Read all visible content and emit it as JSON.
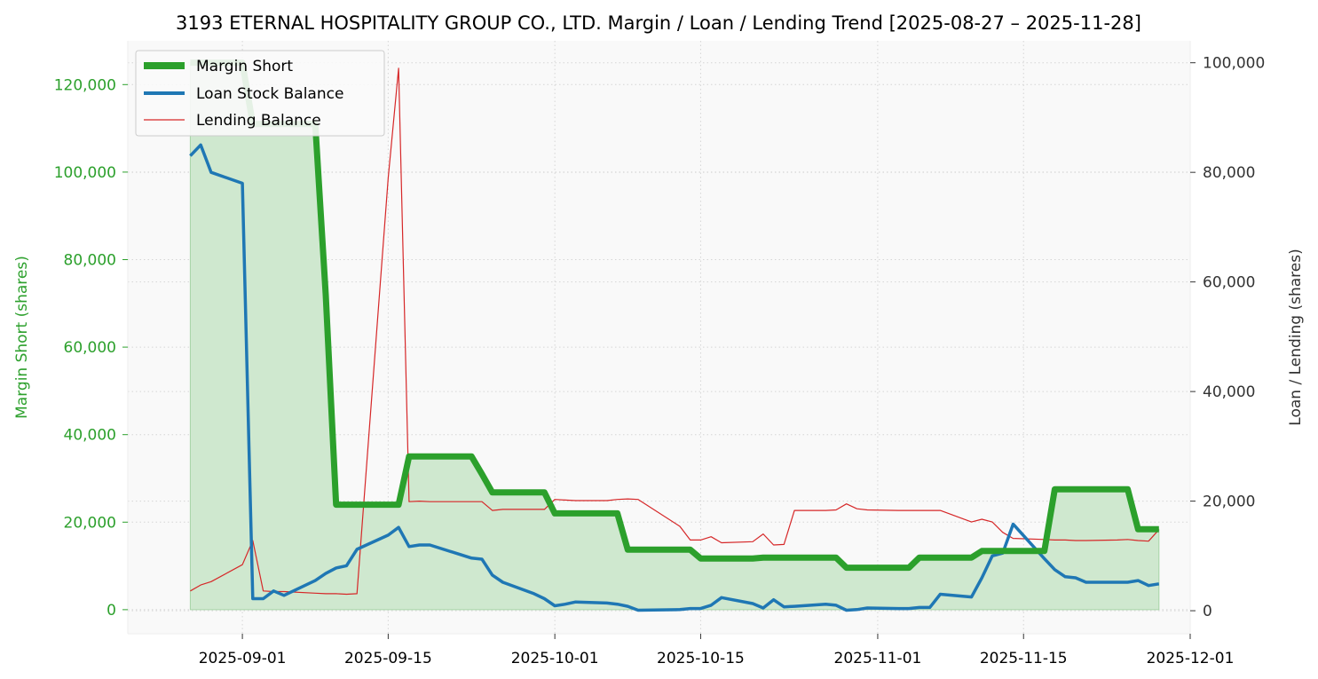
{
  "chart_data": {
    "type": "line",
    "title": "3193 ETERNAL HOSPITALITY GROUP CO., LTD. Margin / Loan / Lending Trend [2025-08-27 – 2025-11-28]",
    "xlabel": "",
    "ylabel_left": "Margin Short (shares)",
    "ylabel_right": "Loan / Lending (shares)",
    "x_range": [
      "2025-08-21",
      "2025-12-01"
    ],
    "ylim_left": [
      -5500,
      130000
    ],
    "ylim_right": [
      -4200,
      104000
    ],
    "x_ticks": [
      {
        "date": "2025-09-01",
        "label": "2025-09-01"
      },
      {
        "date": "2025-09-15",
        "label": "2025-09-15"
      },
      {
        "date": "2025-10-01",
        "label": "2025-10-01"
      },
      {
        "date": "2025-10-15",
        "label": "2025-10-15"
      },
      {
        "date": "2025-11-01",
        "label": "2025-11-01"
      },
      {
        "date": "2025-11-15",
        "label": "2025-11-15"
      },
      {
        "date": "2025-12-01",
        "label": "2025-12-01"
      }
    ],
    "y_left_ticks": [
      {
        "value": 0,
        "label": "0"
      },
      {
        "value": 20000,
        "label": "20,000"
      },
      {
        "value": 40000,
        "label": "40,000"
      },
      {
        "value": 60000,
        "label": "60,000"
      },
      {
        "value": 80000,
        "label": "80,000"
      },
      {
        "value": 100000,
        "label": "100,000"
      },
      {
        "value": 120000,
        "label": "120,000"
      }
    ],
    "y_right_ticks": [
      {
        "value": 0,
        "label": "0"
      },
      {
        "value": 20000,
        "label": "20,000"
      },
      {
        "value": 40000,
        "label": "40,000"
      },
      {
        "value": 60000,
        "label": "60,000"
      },
      {
        "value": 80000,
        "label": "80,000"
      },
      {
        "value": 100000,
        "label": "100,000"
      }
    ],
    "legend_position": "top-left",
    "grid": true,
    "colors": {
      "margin": "#2ca02c",
      "margin_fill": "#cfe8cf",
      "loan": "#1f77b4",
      "lending": "#d62728",
      "left_axis": "#2ca02c",
      "right_axis": "#333333",
      "plot_bg": "#f9f9f9",
      "grid": "#d5d5d5"
    },
    "series": [
      {
        "name": "Margin Short",
        "axis": "left",
        "points": [
          [
            "2025-08-27",
            125000
          ],
          [
            "2025-08-28",
            125000
          ],
          [
            "2025-08-29",
            125000
          ],
          [
            "2025-09-01",
            125000
          ],
          [
            "2025-09-02",
            111000
          ],
          [
            "2025-09-03",
            111000
          ],
          [
            "2025-09-04",
            111000
          ],
          [
            "2025-09-05",
            111000
          ],
          [
            "2025-09-08",
            111000
          ],
          [
            "2025-09-09",
            72000
          ],
          [
            "2025-09-10",
            24000
          ],
          [
            "2025-09-11",
            24000
          ],
          [
            "2025-09-12",
            24000
          ],
          [
            "2025-09-15",
            24000
          ],
          [
            "2025-09-16",
            24000
          ],
          [
            "2025-09-17",
            35000
          ],
          [
            "2025-09-18",
            35000
          ],
          [
            "2025-09-19",
            35000
          ],
          [
            "2025-09-22",
            35000
          ],
          [
            "2025-09-23",
            35000
          ],
          [
            "2025-09-24",
            31000
          ],
          [
            "2025-09-25",
            26800
          ],
          [
            "2025-09-26",
            26800
          ],
          [
            "2025-09-29",
            26800
          ],
          [
            "2025-09-30",
            26800
          ],
          [
            "2025-10-01",
            22000
          ],
          [
            "2025-10-02",
            22000
          ],
          [
            "2025-10-03",
            22000
          ],
          [
            "2025-10-06",
            22000
          ],
          [
            "2025-10-07",
            22000
          ],
          [
            "2025-10-08",
            13700
          ],
          [
            "2025-10-09",
            13700
          ],
          [
            "2025-10-13",
            13700
          ],
          [
            "2025-10-14",
            13700
          ],
          [
            "2025-10-15",
            11700
          ],
          [
            "2025-10-16",
            11700
          ],
          [
            "2025-10-17",
            11700
          ],
          [
            "2025-10-20",
            11700
          ],
          [
            "2025-10-21",
            11900
          ],
          [
            "2025-10-22",
            11900
          ],
          [
            "2025-10-23",
            11900
          ],
          [
            "2025-10-24",
            11900
          ],
          [
            "2025-10-27",
            11900
          ],
          [
            "2025-10-28",
            11900
          ],
          [
            "2025-10-29",
            9600
          ],
          [
            "2025-10-30",
            9600
          ],
          [
            "2025-10-31",
            9600
          ],
          [
            "2025-11-03",
            9600
          ],
          [
            "2025-11-04",
            9600
          ],
          [
            "2025-11-05",
            11900
          ],
          [
            "2025-11-06",
            11900
          ],
          [
            "2025-11-07",
            11900
          ],
          [
            "2025-11-10",
            11900
          ],
          [
            "2025-11-11",
            13400
          ],
          [
            "2025-11-12",
            13400
          ],
          [
            "2025-11-13",
            13400
          ],
          [
            "2025-11-14",
            13400
          ],
          [
            "2025-11-17",
            13400
          ],
          [
            "2025-11-18",
            27500
          ],
          [
            "2025-11-19",
            27500
          ],
          [
            "2025-11-20",
            27500
          ],
          [
            "2025-11-21",
            27500
          ],
          [
            "2025-11-24",
            27500
          ],
          [
            "2025-11-25",
            27500
          ],
          [
            "2025-11-26",
            18400
          ],
          [
            "2025-11-27",
            18400
          ],
          [
            "2025-11-28",
            18400
          ]
        ]
      },
      {
        "name": "Loan Stock Balance",
        "axis": "right",
        "points": [
          [
            "2025-08-27",
            83000
          ],
          [
            "2025-08-28",
            85000
          ],
          [
            "2025-08-29",
            80000
          ],
          [
            "2025-09-01",
            78000
          ],
          [
            "2025-09-02",
            2200
          ],
          [
            "2025-09-03",
            2200
          ],
          [
            "2025-09-04",
            3600
          ],
          [
            "2025-09-05",
            2800
          ],
          [
            "2025-09-08",
            5500
          ],
          [
            "2025-09-09",
            6800
          ],
          [
            "2025-09-10",
            7800
          ],
          [
            "2025-09-11",
            8200
          ],
          [
            "2025-09-12",
            11200
          ],
          [
            "2025-09-15",
            13800
          ],
          [
            "2025-09-16",
            15200
          ],
          [
            "2025-09-17",
            11700
          ],
          [
            "2025-09-18",
            12000
          ],
          [
            "2025-09-19",
            12000
          ],
          [
            "2025-09-22",
            10200
          ],
          [
            "2025-09-23",
            9600
          ],
          [
            "2025-09-24",
            9400
          ],
          [
            "2025-09-25",
            6500
          ],
          [
            "2025-09-26",
            5200
          ],
          [
            "2025-09-29",
            3100
          ],
          [
            "2025-09-30",
            2200
          ],
          [
            "2025-10-01",
            900
          ],
          [
            "2025-10-02",
            1200
          ],
          [
            "2025-10-03",
            1600
          ],
          [
            "2025-10-06",
            1400
          ],
          [
            "2025-10-07",
            1200
          ],
          [
            "2025-10-08",
            800
          ],
          [
            "2025-10-09",
            100
          ],
          [
            "2025-10-13",
            200
          ],
          [
            "2025-10-14",
            400
          ],
          [
            "2025-10-15",
            400
          ],
          [
            "2025-10-16",
            1000
          ],
          [
            "2025-10-17",
            2400
          ],
          [
            "2025-10-20",
            1300
          ],
          [
            "2025-10-21",
            500
          ],
          [
            "2025-10-22",
            2000
          ],
          [
            "2025-10-23",
            700
          ],
          [
            "2025-10-24",
            800
          ],
          [
            "2025-10-27",
            1200
          ],
          [
            "2025-10-28",
            1000
          ],
          [
            "2025-10-29",
            100
          ],
          [
            "2025-10-30",
            200
          ],
          [
            "2025-10-31",
            500
          ],
          [
            "2025-11-03",
            400
          ],
          [
            "2025-11-04",
            400
          ],
          [
            "2025-11-05",
            600
          ],
          [
            "2025-11-06",
            600
          ],
          [
            "2025-11-07",
            3000
          ],
          [
            "2025-11-10",
            2500
          ],
          [
            "2025-11-11",
            6000
          ],
          [
            "2025-11-12",
            10000
          ],
          [
            "2025-11-13",
            10500
          ],
          [
            "2025-11-14",
            15800
          ],
          [
            "2025-11-17",
            9500
          ],
          [
            "2025-11-18",
            7500
          ],
          [
            "2025-11-19",
            6200
          ],
          [
            "2025-11-20",
            6000
          ],
          [
            "2025-11-21",
            5200
          ],
          [
            "2025-11-24",
            5200
          ],
          [
            "2025-11-25",
            5200
          ],
          [
            "2025-11-26",
            5500
          ],
          [
            "2025-11-27",
            4600
          ],
          [
            "2025-11-28",
            4900
          ]
        ]
      },
      {
        "name": "Lending Balance",
        "axis": "right",
        "points": [
          [
            "2025-08-27",
            3600
          ],
          [
            "2025-08-28",
            4700
          ],
          [
            "2025-08-29",
            5300
          ],
          [
            "2025-09-01",
            8400
          ],
          [
            "2025-09-02",
            12800
          ],
          [
            "2025-09-03",
            3600
          ],
          [
            "2025-09-04",
            3500
          ],
          [
            "2025-09-05",
            3500
          ],
          [
            "2025-09-08",
            3200
          ],
          [
            "2025-09-09",
            3100
          ],
          [
            "2025-09-10",
            3100
          ],
          [
            "2025-09-11",
            3000
          ],
          [
            "2025-09-12",
            3100
          ],
          [
            "2025-09-15",
            79000
          ],
          [
            "2025-09-16",
            99000
          ],
          [
            "2025-09-17",
            19900
          ],
          [
            "2025-09-18",
            20000
          ],
          [
            "2025-09-19",
            19900
          ],
          [
            "2025-09-22",
            19900
          ],
          [
            "2025-09-23",
            19900
          ],
          [
            "2025-09-24",
            19900
          ],
          [
            "2025-09-25",
            18300
          ],
          [
            "2025-09-26",
            18500
          ],
          [
            "2025-09-29",
            18500
          ],
          [
            "2025-09-30",
            18500
          ],
          [
            "2025-10-01",
            20300
          ],
          [
            "2025-10-02",
            20200
          ],
          [
            "2025-10-03",
            20100
          ],
          [
            "2025-10-06",
            20100
          ],
          [
            "2025-10-07",
            20300
          ],
          [
            "2025-10-08",
            20400
          ],
          [
            "2025-10-09",
            20300
          ],
          [
            "2025-10-13",
            15400
          ],
          [
            "2025-10-14",
            12900
          ],
          [
            "2025-10-15",
            12900
          ],
          [
            "2025-10-16",
            13500
          ],
          [
            "2025-10-17",
            12400
          ],
          [
            "2025-10-20",
            12600
          ],
          [
            "2025-10-21",
            14000
          ],
          [
            "2025-10-22",
            12000
          ],
          [
            "2025-10-23",
            12100
          ],
          [
            "2025-10-24",
            18300
          ],
          [
            "2025-10-27",
            18300
          ],
          [
            "2025-10-28",
            18400
          ],
          [
            "2025-10-29",
            19500
          ],
          [
            "2025-10-30",
            18600
          ],
          [
            "2025-10-31",
            18400
          ],
          [
            "2025-11-03",
            18300
          ],
          [
            "2025-11-04",
            18300
          ],
          [
            "2025-11-05",
            18300
          ],
          [
            "2025-11-06",
            18300
          ],
          [
            "2025-11-07",
            18300
          ],
          [
            "2025-11-10",
            16200
          ],
          [
            "2025-11-11",
            16700
          ],
          [
            "2025-11-12",
            16200
          ],
          [
            "2025-11-13",
            14300
          ],
          [
            "2025-11-14",
            13200
          ],
          [
            "2025-11-17",
            13000
          ],
          [
            "2025-11-18",
            12900
          ],
          [
            "2025-11-19",
            12900
          ],
          [
            "2025-11-20",
            12800
          ],
          [
            "2025-11-21",
            12800
          ],
          [
            "2025-11-24",
            12900
          ],
          [
            "2025-11-25",
            13000
          ],
          [
            "2025-11-26",
            12800
          ],
          [
            "2025-11-27",
            12700
          ],
          [
            "2025-11-28",
            14800
          ]
        ]
      }
    ]
  }
}
